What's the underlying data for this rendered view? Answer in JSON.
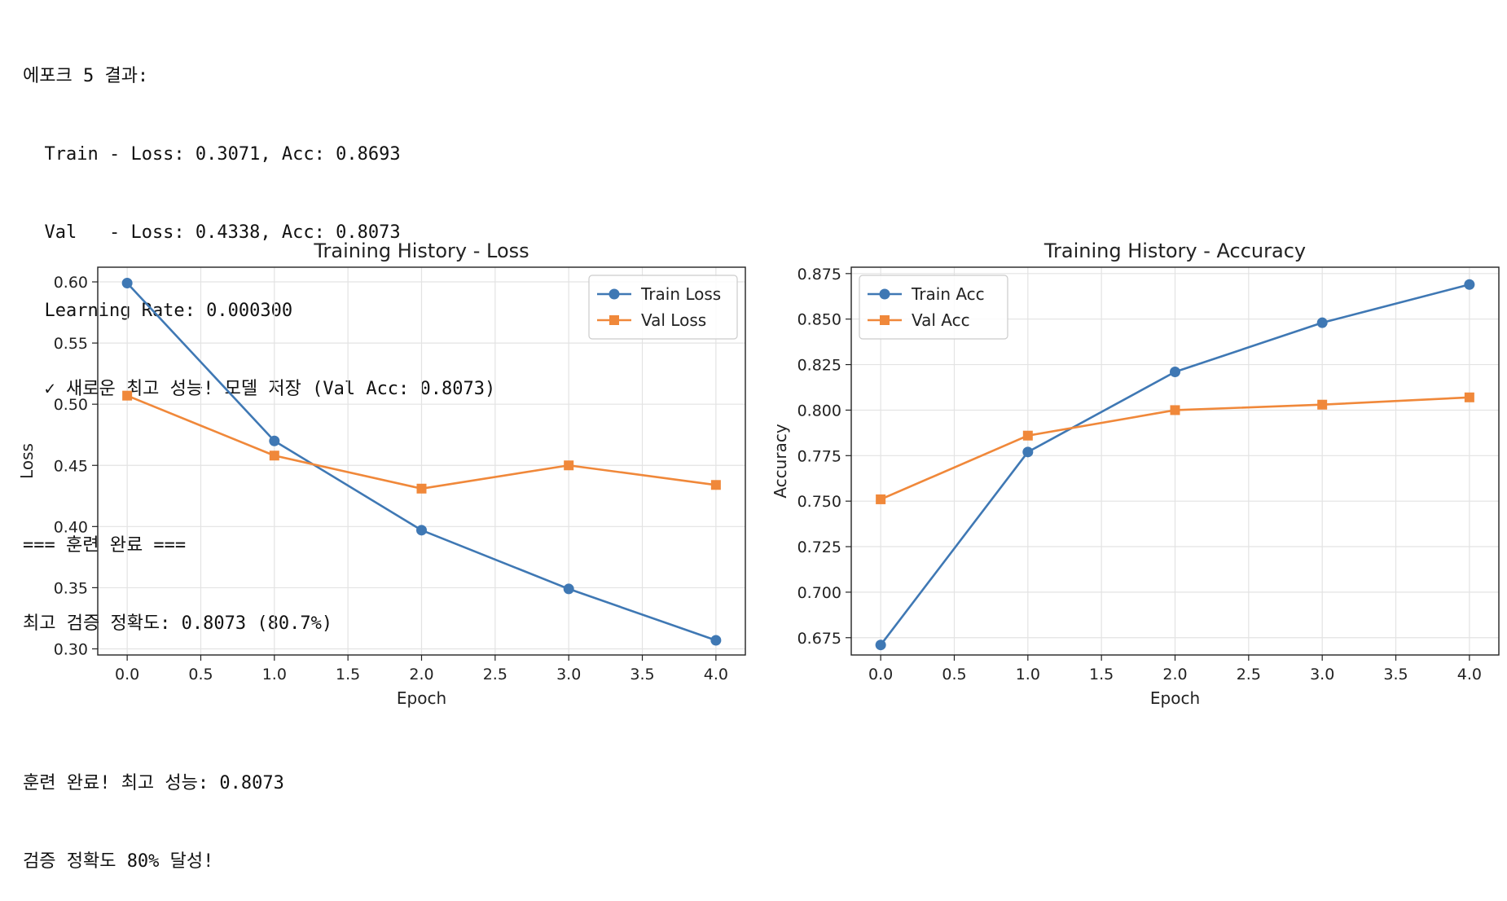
{
  "log_top": [
    "에포크 5 결과:",
    "  Train - Loss: 0.3071, Acc: 0.8693",
    "  Val   - Loss: 0.4338, Acc: 0.8073",
    "  Learning Rate: 0.000300",
    "  ✓ 새로운 최고 성능! 모델 저장 (Val Acc: 0.8073)",
    "",
    "=== 훈련 완료 ===",
    "최고 검증 정확도: 0.8073 (80.7%)"
  ],
  "log_bottom": [
    "훈련 완료! 최고 성능: 0.8073",
    "검증 정확도 80% 달성!"
  ],
  "chart_data": [
    {
      "type": "line",
      "title": "Training History - Loss",
      "xlabel": "Epoch",
      "ylabel": "Loss",
      "x": [
        0,
        1,
        2,
        3,
        4
      ],
      "xlim": [
        -0.2,
        4.2
      ],
      "ylim": [
        0.295,
        0.612
      ],
      "xticks": [
        0.0,
        0.5,
        1.0,
        1.5,
        2.0,
        2.5,
        3.0,
        3.5,
        4.0
      ],
      "xtick_labels": [
        "0.0",
        "0.5",
        "1.0",
        "1.5",
        "2.0",
        "2.5",
        "3.0",
        "3.5",
        "4.0"
      ],
      "yticks": [
        0.3,
        0.35,
        0.4,
        0.45,
        0.5,
        0.55,
        0.6
      ],
      "ytick_labels": [
        "0.30",
        "0.35",
        "0.40",
        "0.45",
        "0.50",
        "0.55",
        "0.60"
      ],
      "grid": true,
      "legend": "top-right",
      "series": [
        {
          "name": "Train Loss",
          "marker": "circle",
          "color": "#3f78b4",
          "values": [
            0.599,
            0.47,
            0.397,
            0.349,
            0.307
          ]
        },
        {
          "name": "Val Loss",
          "marker": "square",
          "color": "#f0883a",
          "values": [
            0.507,
            0.458,
            0.431,
            0.45,
            0.434
          ]
        }
      ]
    },
    {
      "type": "line",
      "title": "Training History - Accuracy",
      "xlabel": "Epoch",
      "ylabel": "Accuracy",
      "x": [
        0,
        1,
        2,
        3,
        4
      ],
      "xlim": [
        -0.2,
        4.2
      ],
      "ylim": [
        0.6655,
        0.8785
      ],
      "xticks": [
        0.0,
        0.5,
        1.0,
        1.5,
        2.0,
        2.5,
        3.0,
        3.5,
        4.0
      ],
      "xtick_labels": [
        "0.0",
        "0.5",
        "1.0",
        "1.5",
        "2.0",
        "2.5",
        "3.0",
        "3.5",
        "4.0"
      ],
      "yticks": [
        0.675,
        0.7,
        0.725,
        0.75,
        0.775,
        0.8,
        0.825,
        0.85,
        0.875
      ],
      "ytick_labels": [
        "0.675",
        "0.700",
        "0.725",
        "0.750",
        "0.775",
        "0.800",
        "0.825",
        "0.850",
        "0.875"
      ],
      "grid": true,
      "legend": "top-left",
      "series": [
        {
          "name": "Train Acc",
          "marker": "circle",
          "color": "#3f78b4",
          "values": [
            0.671,
            0.777,
            0.821,
            0.848,
            0.869
          ]
        },
        {
          "name": "Val Acc",
          "marker": "square",
          "color": "#f0883a",
          "values": [
            0.751,
            0.786,
            0.8,
            0.803,
            0.807
          ]
        }
      ]
    }
  ]
}
